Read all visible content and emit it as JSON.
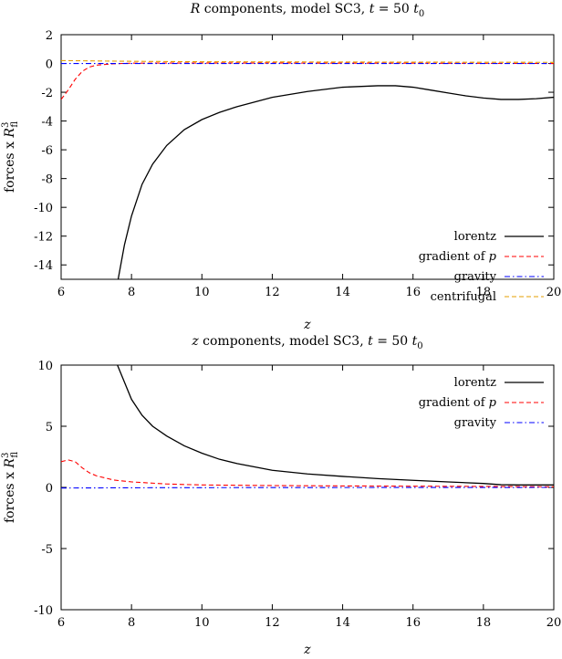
{
  "chart_data": [
    {
      "type": "line",
      "title": "R components, model SC3, t = 50 t0",
      "title_parts": {
        "var": "R",
        "rest": " components, model SC3, ",
        "t": "t",
        "eq": " = 50 ",
        "t0": "t",
        "sub0": "0"
      },
      "xlabel": "z",
      "ylabel": "forces x R_fl^3",
      "ylabel_parts": {
        "prefix": "forces x ",
        "var": "R",
        "sub": "fl",
        "sup": "3"
      },
      "xlim": [
        6,
        20
      ],
      "ylim": [
        -15,
        2
      ],
      "xticks": [
        6,
        8,
        10,
        12,
        14,
        16,
        18,
        20
      ],
      "yticks": [
        2,
        0,
        -2,
        -4,
        -6,
        -8,
        -10,
        -12,
        -14
      ],
      "legend_position": "bottom-right",
      "grid": false,
      "series": [
        {
          "name": "lorentz",
          "color": "#000000",
          "dash": "solid",
          "points": [
            [
              7.62,
              -15.0
            ],
            [
              7.8,
              -12.6
            ],
            [
              8.0,
              -10.6
            ],
            [
              8.3,
              -8.4
            ],
            [
              8.6,
              -7.0
            ],
            [
              9.0,
              -5.7
            ],
            [
              9.5,
              -4.6
            ],
            [
              10.0,
              -3.9
            ],
            [
              10.5,
              -3.4
            ],
            [
              11.0,
              -3.0
            ],
            [
              12.0,
              -2.35
            ],
            [
              13.0,
              -1.95
            ],
            [
              14.0,
              -1.65
            ],
            [
              15.0,
              -1.55
            ],
            [
              15.5,
              -1.55
            ],
            [
              16.0,
              -1.65
            ],
            [
              16.5,
              -1.85
            ],
            [
              17.0,
              -2.05
            ],
            [
              17.5,
              -2.25
            ],
            [
              18.0,
              -2.4
            ],
            [
              18.5,
              -2.5
            ],
            [
              19.0,
              -2.5
            ],
            [
              19.5,
              -2.45
            ],
            [
              20.0,
              -2.35
            ]
          ]
        },
        {
          "name": "gradient of p",
          "color": "#ff0000",
          "dash": "dashed",
          "points": [
            [
              6.0,
              -2.5
            ],
            [
              6.2,
              -1.85
            ],
            [
              6.4,
              -1.1
            ],
            [
              6.6,
              -0.55
            ],
            [
              6.8,
              -0.25
            ],
            [
              7.0,
              -0.12
            ],
            [
              7.5,
              -0.02
            ],
            [
              8.0,
              0.02
            ],
            [
              9.0,
              0.03
            ],
            [
              10.0,
              0.03
            ],
            [
              12.0,
              0.03
            ],
            [
              14.0,
              0.02
            ],
            [
              16.0,
              0.02
            ],
            [
              18.0,
              0.01
            ],
            [
              20.0,
              0.0
            ]
          ]
        },
        {
          "name": "gravity",
          "color": "#0000ff",
          "dash": "dashdot",
          "points": [
            [
              6.0,
              0.0
            ],
            [
              20.0,
              0.0
            ]
          ]
        },
        {
          "name": "centrifugal",
          "color": "#e69f00",
          "dash": "dashed",
          "points": [
            [
              6.0,
              0.2
            ],
            [
              8.0,
              0.15
            ],
            [
              10.0,
              0.12
            ],
            [
              14.0,
              0.1
            ],
            [
              20.0,
              0.08
            ]
          ]
        }
      ],
      "legend": [
        {
          "label": "lorentz",
          "label_parts": [
            "lorentz"
          ]
        },
        {
          "label": "gradient of p",
          "label_parts": [
            "gradient of ",
            "p"
          ]
        },
        {
          "label": "gravity",
          "label_parts": [
            "gravity"
          ]
        },
        {
          "label": "centrifugal",
          "label_parts": [
            "centrifugal"
          ]
        }
      ]
    },
    {
      "type": "line",
      "title": "z components, model SC3, t = 50 t0",
      "title_parts": {
        "var": "z",
        "rest": " components, model SC3, ",
        "t": "t",
        "eq": " = 50 ",
        "t0": "t",
        "sub0": "0"
      },
      "xlabel": "z",
      "ylabel": "forces x R_fl^3",
      "ylabel_parts": {
        "prefix": "forces x ",
        "var": "R",
        "sub": "fl",
        "sup": "3"
      },
      "xlim": [
        6,
        20
      ],
      "ylim": [
        -10,
        10
      ],
      "xticks": [
        6,
        8,
        10,
        12,
        14,
        16,
        18,
        20
      ],
      "yticks": [
        10,
        5,
        0,
        -5,
        -10
      ],
      "legend_position": "top-right",
      "grid": false,
      "series": [
        {
          "name": "lorentz",
          "color": "#000000",
          "dash": "solid",
          "points": [
            [
              7.6,
              10.0
            ],
            [
              7.8,
              8.6
            ],
            [
              8.0,
              7.2
            ],
            [
              8.3,
              5.9
            ],
            [
              8.6,
              5.0
            ],
            [
              9.0,
              4.2
            ],
            [
              9.5,
              3.4
            ],
            [
              10.0,
              2.8
            ],
            [
              10.5,
              2.3
            ],
            [
              11.0,
              1.95
            ],
            [
              12.0,
              1.4
            ],
            [
              13.0,
              1.1
            ],
            [
              14.0,
              0.9
            ],
            [
              15.0,
              0.72
            ],
            [
              16.0,
              0.58
            ],
            [
              17.0,
              0.45
            ],
            [
              18.0,
              0.32
            ],
            [
              18.5,
              0.22
            ],
            [
              19.0,
              0.2
            ],
            [
              20.0,
              0.2
            ]
          ]
        },
        {
          "name": "gradient of p",
          "color": "#ff0000",
          "dash": "dashed",
          "points": [
            [
              6.0,
              2.1
            ],
            [
              6.2,
              2.25
            ],
            [
              6.4,
              2.1
            ],
            [
              6.6,
              1.6
            ],
            [
              6.8,
              1.2
            ],
            [
              7.0,
              0.95
            ],
            [
              7.5,
              0.6
            ],
            [
              8.0,
              0.45
            ],
            [
              9.0,
              0.28
            ],
            [
              10.0,
              0.2
            ],
            [
              12.0,
              0.15
            ],
            [
              14.0,
              0.12
            ],
            [
              16.0,
              0.1
            ],
            [
              18.0,
              0.08
            ],
            [
              20.0,
              0.05
            ]
          ]
        },
        {
          "name": "gravity",
          "color": "#0000ff",
          "dash": "dashdot",
          "points": [
            [
              6.0,
              -0.05
            ],
            [
              8.0,
              -0.03
            ],
            [
              10.0,
              -0.02
            ],
            [
              14.0,
              -0.01
            ],
            [
              20.0,
              0.0
            ]
          ]
        }
      ],
      "legend": [
        {
          "label": "lorentz",
          "label_parts": [
            "lorentz"
          ]
        },
        {
          "label": "gradient of p",
          "label_parts": [
            "gradient of ",
            "p"
          ]
        },
        {
          "label": "gravity",
          "label_parts": [
            "gravity"
          ]
        }
      ]
    }
  ]
}
